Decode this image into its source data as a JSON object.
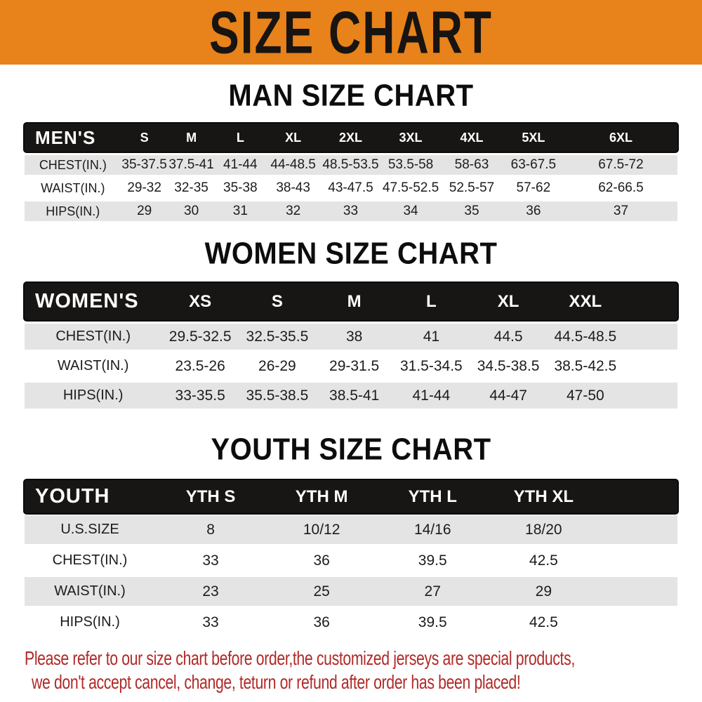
{
  "banner": {
    "title": "SIZE CHART"
  },
  "colors": {
    "banner_bg": "#E8821A",
    "table_header_bg": "#171615",
    "row_stripe_bg": "#E4E4E4",
    "footer_text": "#B02A28"
  },
  "chart_data": [
    {
      "type": "table",
      "title": "MAN SIZE CHART",
      "corner_label": "MEN'S",
      "columns": [
        "S",
        "M",
        "L",
        "XL",
        "2XL",
        "3XL",
        "4XL",
        "5XL",
        "6XL"
      ],
      "rows": [
        {
          "label": "CHEST(IN.)",
          "values": [
            "35-37.5",
            "37.5-41",
            "41-44",
            "44-48.5",
            "48.5-53.5",
            "53.5-58",
            "58-63",
            "63-67.5",
            "67.5-72"
          ]
        },
        {
          "label": "WAIST(IN.)",
          "values": [
            "29-32",
            "32-35",
            "35-38",
            "38-43",
            "43-47.5",
            "47.5-52.5",
            "52.5-57",
            "57-62",
            "62-66.5"
          ]
        },
        {
          "label": "HIPS(IN.)",
          "values": [
            "29",
            "30",
            "31",
            "32",
            "33",
            "34",
            "35",
            "36",
            "37"
          ]
        }
      ]
    },
    {
      "type": "table",
      "title": "WOMEN SIZE CHART",
      "corner_label": "WOMEN'S",
      "columns": [
        "XS",
        "S",
        "M",
        "L",
        "XL",
        "XXL"
      ],
      "rows": [
        {
          "label": "CHEST(IN.)",
          "values": [
            "29.5-32.5",
            "32.5-35.5",
            "38",
            "41",
            "44.5",
            "44.5-48.5"
          ]
        },
        {
          "label": "WAIST(IN.)",
          "values": [
            "23.5-26",
            "26-29",
            "29-31.5",
            "31.5-34.5",
            "34.5-38.5",
            "38.5-42.5"
          ]
        },
        {
          "label": "HIPS(IN.)",
          "values": [
            "33-35.5",
            "35.5-38.5",
            "38.5-41",
            "41-44",
            "44-47",
            "47-50"
          ]
        }
      ]
    },
    {
      "type": "table",
      "title": "YOUTH SIZE CHART",
      "corner_label": "YOUTH",
      "columns": [
        "YTH S",
        "YTH M",
        "YTH L",
        "YTH XL"
      ],
      "rows": [
        {
          "label": "U.S.SIZE",
          "values": [
            "8",
            "10/12",
            "14/16",
            "18/20"
          ]
        },
        {
          "label": "CHEST(IN.)",
          "values": [
            "33",
            "36",
            "39.5",
            "42.5"
          ]
        },
        {
          "label": "WAIST(IN.)",
          "values": [
            "23",
            "25",
            "27",
            "29"
          ]
        },
        {
          "label": "HIPS(IN.)",
          "values": [
            "33",
            "36",
            "39.5",
            "42.5"
          ]
        }
      ]
    }
  ],
  "footer": {
    "lines": [
      "Please refer to our size chart before order,the customized jerseys are special products,",
      "we don't accept cancel, change, teturn or refund after order has been placed!"
    ]
  }
}
